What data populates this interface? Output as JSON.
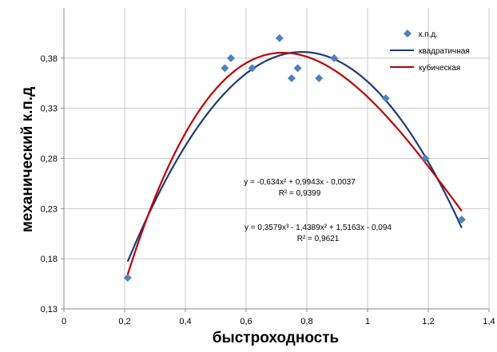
{
  "chart_data": {
    "type": "scatter",
    "xlabel": "быстроходность",
    "ylabel": "механический к.п.д",
    "xlim": [
      0,
      1.4
    ],
    "ylim": [
      0.13,
      0.43
    ],
    "x_ticks": [
      "0",
      "0,2",
      "0,4",
      "0,6",
      "0,8",
      "1",
      "1,2",
      "1,4"
    ],
    "x_tick_values": [
      0,
      0.2,
      0.4,
      0.6,
      0.8,
      1.0,
      1.2,
      1.4
    ],
    "y_ticks": [
      "0,13",
      "0,18",
      "0,23",
      "0,28",
      "0,33",
      "0,38"
    ],
    "y_tick_values": [
      0.13,
      0.18,
      0.23,
      0.28,
      0.33,
      0.38
    ],
    "grid": true,
    "legend_position": "top-right",
    "series": [
      {
        "name": "к.п.д.",
        "kind": "scatter",
        "marker": "diamond",
        "color": "#4F81BD",
        "x": [
          0.21,
          0.53,
          0.55,
          0.62,
          0.71,
          0.75,
          0.77,
          0.84,
          0.89,
          1.06,
          1.19,
          1.31
        ],
        "y": [
          0.161,
          0.37,
          0.38,
          0.37,
          0.4,
          0.36,
          0.37,
          0.36,
          0.38,
          0.34,
          0.28,
          0.219
        ]
      },
      {
        "name": "квадратичная",
        "kind": "line",
        "color": "#1F3A7A",
        "coefficients": [
          -0.0037,
          0.9943,
          -0.634
        ],
        "x_range": [
          0.21,
          1.31
        ]
      },
      {
        "name": "кубическая",
        "kind": "line",
        "color": "#C00000",
        "coefficients": [
          -0.094,
          1.5163,
          -1.4389,
          0.3579
        ],
        "x_range": [
          0.21,
          1.31
        ]
      }
    ],
    "annotations": [
      {
        "text": "y = -0,634x² + 0,9943x - 0,0037"
      },
      {
        "text": "R² = 0,9399"
      },
      {
        "text": "y = 0,3579x³ - 1,4389x² + 1,5163x - 0,094"
      },
      {
        "text": "R² = 0,9621"
      }
    ]
  }
}
